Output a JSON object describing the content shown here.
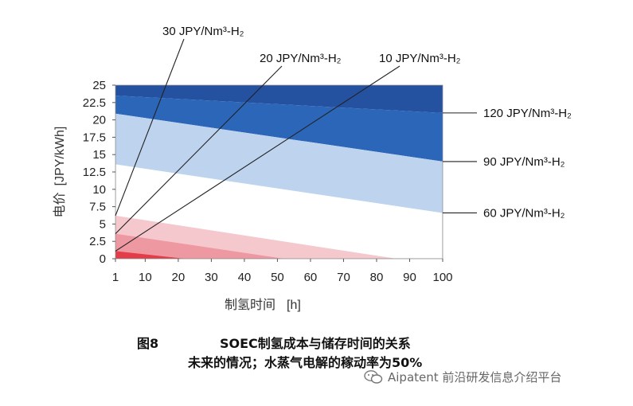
{
  "chart_data": {
    "type": "area",
    "xlabel": "制氢时间",
    "xunit": "[h]",
    "ylabel": "电价",
    "yunit": "[JPY/kWh]",
    "xlim": [
      1,
      100
    ],
    "ylim": [
      0,
      25
    ],
    "xticks": [
      1,
      10,
      20,
      30,
      40,
      50,
      60,
      70,
      80,
      90,
      100
    ],
    "xtick_labels": [
      "1",
      "10",
      "20",
      "30",
      "40",
      "50",
      "60",
      "70",
      "80",
      "90",
      "100"
    ],
    "yticks": [
      0,
      2.5,
      5,
      7.5,
      10,
      12.5,
      15,
      17.5,
      20,
      22.5,
      25
    ],
    "ytick_labels": [
      "0",
      "2.5",
      "5",
      "7.5",
      "10",
      "12.5",
      "15",
      "17.5",
      "20",
      "22.5",
      "25"
    ],
    "contours": [
      {
        "name": "120 JPY/Nm³-H₂",
        "x": [
          1,
          100
        ],
        "y": [
          23.5,
          21.0
        ],
        "color": "#1f5fae"
      },
      {
        "name": "90 JPY/Nm³-H₂",
        "x": [
          1,
          100
        ],
        "y": [
          20.9,
          14.0
        ],
        "color": "#2f78c4"
      },
      {
        "name": "60 JPY/Nm³-H₂",
        "x": [
          1,
          100
        ],
        "y": [
          13.6,
          6.6
        ],
        "color": "#bcd2ed"
      },
      {
        "name": "30 JPY/Nm³-H₂",
        "x": [
          1,
          86
        ],
        "y": [
          6.2,
          0
        ],
        "color": "#f2b8bf"
      },
      {
        "name": "20 JPY/Nm³-H₂",
        "x": [
          1,
          52
        ],
        "y": [
          3.6,
          0
        ],
        "color": "#eb8490"
      },
      {
        "name": "10 JPY/Nm³-H₂",
        "x": [
          1,
          22
        ],
        "y": [
          1.1,
          0
        ],
        "color": "#e23a48"
      }
    ],
    "callouts": [
      {
        "text": "30 JPY/Nm³-H₂",
        "at": [
          1,
          6.2
        ]
      },
      {
        "text": "20 JPY/Nm³-H₂",
        "at": [
          1,
          3.6
        ]
      },
      {
        "text": "10 JPY/Nm³-H₂",
        "at": [
          1,
          1.1
        ]
      },
      {
        "text": "120 JPY/Nm³-H₂",
        "at": [
          100,
          21.0
        ]
      },
      {
        "text": "90 JPY/Nm³-H₂",
        "at": [
          100,
          14.0
        ]
      },
      {
        "text": "60 JPY/Nm³-H₂",
        "at": [
          100,
          6.6
        ]
      }
    ],
    "colors": {
      "top_dark": "#2451a0",
      "blue_120": "#2b66b8",
      "blue_90": "#2f7ac6",
      "light_blue": "#bdd3ee",
      "white_band": "#ffffff",
      "pink_light": "#f5c8cd",
      "pink_mid": "#ee98a2",
      "red": "#e33d49"
    }
  },
  "caption": {
    "figure_no": "图8",
    "line1": "SOEC制氢成本与储存时间的关系",
    "line2": "未来的情况；水蒸气电解的稼动率为50%"
  },
  "watermark": {
    "text": "Aipatent 前沿研发信息介绍平台",
    "icon": "wechat-icon"
  }
}
